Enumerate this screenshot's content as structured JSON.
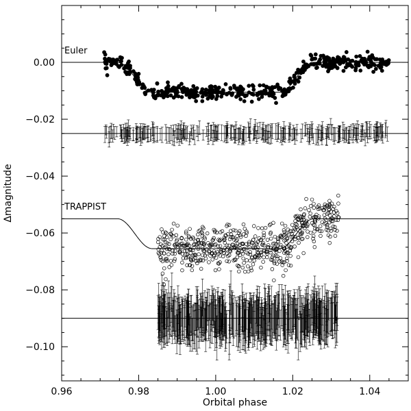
{
  "chart_data": {
    "type": "scatter",
    "xlabel": "Orbital phase",
    "ylabel": "Δmagnitude",
    "xlim": [
      0.96,
      1.05
    ],
    "ylim": [
      -0.112,
      0.02
    ],
    "x_ticks": [
      0.96,
      0.98,
      1.0,
      1.02,
      1.04
    ],
    "x_tick_labels": [
      "0.96",
      "0.98",
      "1.00",
      "1.02",
      "1.04"
    ],
    "y_ticks": [
      0.0,
      -0.02,
      -0.04,
      -0.06,
      -0.08,
      -0.1
    ],
    "y_tick_labels": [
      "0.00",
      "−0.02",
      "−0.04",
      "−0.06",
      "−0.08",
      "−0.10"
    ],
    "grid": false,
    "annotations": [
      "Euler",
      "TRAPPIST"
    ],
    "series": [
      {
        "name": "Euler",
        "kind": "filled-points",
        "phase_range": [
          0.971,
          1.045
        ],
        "transit_model": {
          "baseline": 0.0,
          "depth": 0.0105,
          "ingress": [
            0.9745,
            0.9835
          ],
          "egress": [
            1.0165,
            1.0255
          ]
        },
        "scatter": 0.0013
      },
      {
        "name": "Euler residuals",
        "kind": "error-bars",
        "phase_range": [
          0.971,
          1.045
        ],
        "offset": -0.025,
        "error": 0.0022
      },
      {
        "name": "TRAPPIST",
        "kind": "open-points",
        "phase_range": [
          0.985,
          1.032
        ],
        "transit_model": {
          "baseline": -0.055,
          "depth": 0.0105,
          "ingress": [
            0.9745,
            0.9835
          ],
          "egress": [
            1.0165,
            1.0255
          ]
        },
        "scatter": 0.0038
      },
      {
        "name": "TRAPPIST residuals",
        "kind": "error-bars",
        "phase_range": [
          0.985,
          1.032
        ],
        "offset": -0.09,
        "error": 0.006
      }
    ]
  }
}
